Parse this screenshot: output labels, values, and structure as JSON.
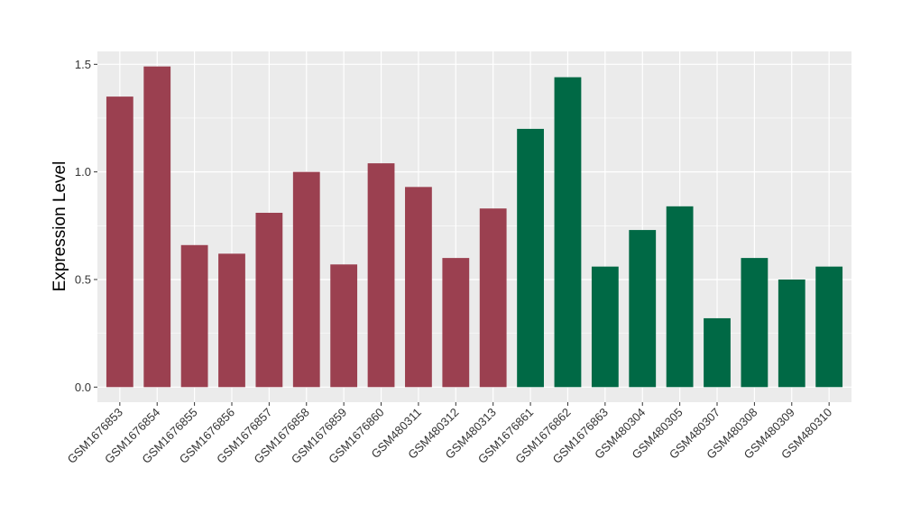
{
  "chart_data": {
    "type": "bar",
    "title": "",
    "xlabel": "",
    "ylabel": "Expression Level",
    "ylim": [
      -0.07,
      1.56
    ],
    "yticks": [
      0.0,
      0.5,
      1.0,
      1.5
    ],
    "ytick_labels": [
      "0.0",
      "0.5",
      "1.0",
      "1.5"
    ],
    "grid": true,
    "legend": "none",
    "colors": {
      "group_a": "#9b4050",
      "group_b": "#006945",
      "panel": "#ebebeb",
      "grid": "#ffffff"
    },
    "categories": [
      "GSM1676853",
      "GSM1676854",
      "GSM1676855",
      "GSM1676856",
      "GSM1676857",
      "GSM1676858",
      "GSM1676859",
      "GSM1676860",
      "GSM480311",
      "GSM480312",
      "GSM480313",
      "GSM1676861",
      "GSM1676862",
      "GSM1676863",
      "GSM480304",
      "GSM480305",
      "GSM480307",
      "GSM480308",
      "GSM480309",
      "GSM480310"
    ],
    "values": [
      1.35,
      1.49,
      0.66,
      0.62,
      0.81,
      1.0,
      0.57,
      1.04,
      0.93,
      0.6,
      0.83,
      1.2,
      1.44,
      0.56,
      0.73,
      0.84,
      0.32,
      0.6,
      0.5,
      0.56
    ],
    "groups": [
      "a",
      "a",
      "a",
      "a",
      "a",
      "a",
      "a",
      "a",
      "a",
      "a",
      "a",
      "b",
      "b",
      "b",
      "b",
      "b",
      "b",
      "b",
      "b",
      "b"
    ]
  }
}
